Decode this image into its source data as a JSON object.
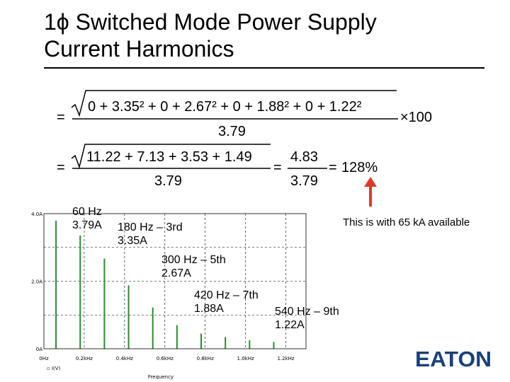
{
  "title": {
    "line1": "1ϕ Switched Mode Power Supply",
    "line2": "Current Harmonics"
  },
  "formula": {
    "eq": "=",
    "radicand1": "0 + 3.35² + 0 + 2.67² + 0 + 1.88² + 0 + 1.22²",
    "denom": "3.79",
    "times100": "×100",
    "radicand2": "11.22 + 7.13 + 3.53 + 1.49",
    "mid_num": "4.83",
    "result": "128%"
  },
  "labels": {
    "h1": {
      "freq": "60 Hz",
      "amp": "3.79A"
    },
    "h3": {
      "freq": "180 Hz – 3rd",
      "amp": "3.35A"
    },
    "h5": {
      "freq": "300 Hz –  5th",
      "amp": "2.67A"
    },
    "h7": {
      "freq": "420 Hz – 7th",
      "amp": "1.88A"
    },
    "h9": {
      "freq": "540 Hz – 9th",
      "amp": "1.22A"
    }
  },
  "note": "This is with 65 kA available",
  "chart_data": {
    "type": "bar",
    "x_ticks": [
      "0Hz",
      "0.2kHz",
      "0.4kHz",
      "0.6kHz",
      "0.8kHz",
      "1.0kHz",
      "1.2kHz"
    ],
    "y_ticks": [
      "4.0A",
      "2.0A",
      "0A"
    ],
    "xlabel": "Frequency",
    "series_label": "I(V)",
    "xlim": [
      0,
      1300
    ],
    "ylim": [
      0,
      4.0
    ],
    "x": [
      60,
      180,
      300,
      420,
      540,
      660,
      780,
      900,
      1020,
      1140
    ],
    "values": [
      3.79,
      3.35,
      2.67,
      1.88,
      1.22,
      0.7,
      0.45,
      0.35,
      0.25,
      0.2
    ]
  },
  "logo": {
    "text": "EATON",
    "color": "#1a3f7a"
  },
  "colors": {
    "arrow": "#e0392b",
    "bars": "#2f8a2f",
    "grid": "#000000"
  }
}
